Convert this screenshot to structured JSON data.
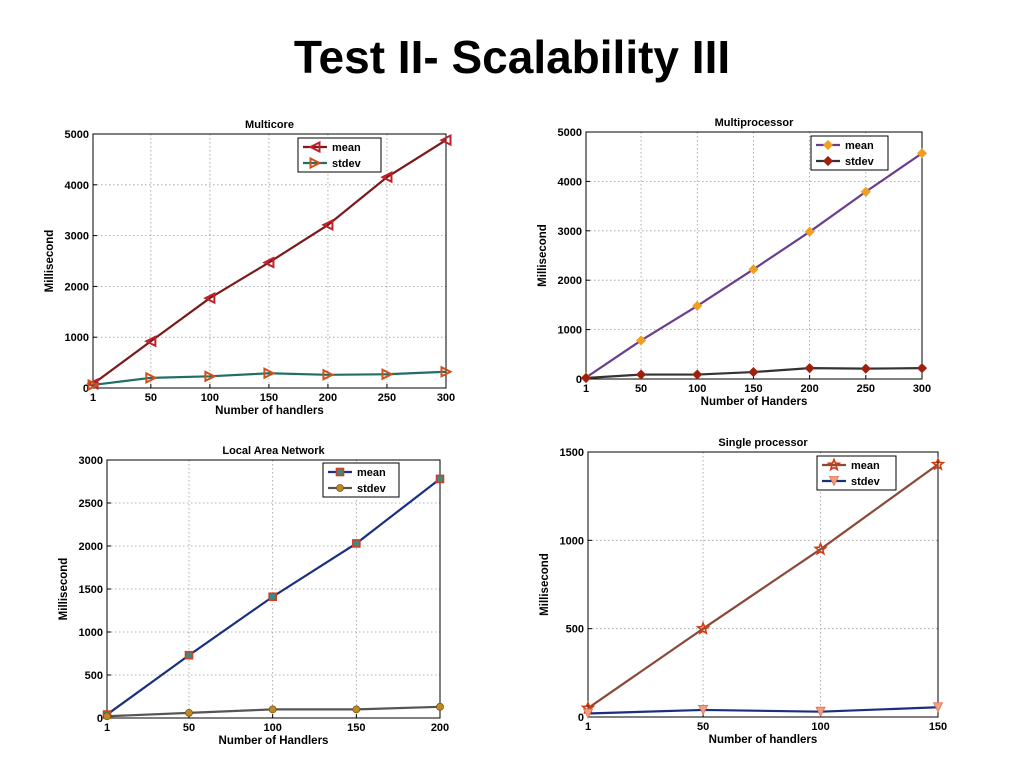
{
  "page": {
    "title": "Test II- Scalability III"
  },
  "chart_data": [
    {
      "type": "line",
      "title": "Multicore",
      "xlabel": "Number of handlers",
      "ylabel": "Millisecond",
      "x": [
        1,
        50,
        100,
        150,
        200,
        250,
        300
      ],
      "xticks": [
        1,
        50,
        100,
        150,
        200,
        250,
        300
      ],
      "xlim": [
        1,
        300
      ],
      "yticks": [
        0,
        1000,
        2000,
        3000,
        4000,
        5000
      ],
      "ylim": [
        0,
        5000
      ],
      "grid": true,
      "legend_position": "top-right",
      "series": [
        {
          "name": "mean",
          "values": [
            80,
            920,
            1770,
            2470,
            3210,
            4150,
            4880
          ],
          "line_color": "#7a1a1a",
          "marker": "triangle-left",
          "marker_color": "#c0202a"
        },
        {
          "name": "stdev",
          "values": [
            60,
            200,
            230,
            290,
            260,
            270,
            320
          ],
          "line_color": "#1f6f66",
          "marker": "triangle-right",
          "marker_color": "#d0501a"
        }
      ]
    },
    {
      "type": "line",
      "title": "Multiprocessor",
      "xlabel": "Number of Handers",
      "ylabel": "Millisecond",
      "x": [
        1,
        50,
        100,
        150,
        200,
        250,
        300
      ],
      "xticks": [
        1,
        50,
        100,
        150,
        200,
        250,
        300
      ],
      "xlim": [
        1,
        300
      ],
      "yticks": [
        0,
        1000,
        2000,
        3000,
        4000,
        5000
      ],
      "ylim": [
        0,
        5000
      ],
      "grid": true,
      "legend_position": "top-right",
      "series": [
        {
          "name": "mean",
          "values": [
            30,
            780,
            1480,
            2220,
            2980,
            3790,
            4570
          ],
          "line_color": "#6a3d8f",
          "marker": "diamond",
          "marker_color": "#f0a020"
        },
        {
          "name": "stdev",
          "values": [
            20,
            90,
            90,
            140,
            220,
            210,
            220
          ],
          "line_color": "#333333",
          "marker": "diamond",
          "marker_color": "#a02010"
        }
      ]
    },
    {
      "type": "line",
      "title": "Local Area Network",
      "xlabel": "Number of Handlers",
      "ylabel": "Millisecond",
      "x": [
        1,
        50,
        100,
        150,
        200
      ],
      "xticks": [
        1,
        50,
        100,
        150,
        200
      ],
      "xlim": [
        1,
        200
      ],
      "yticks": [
        0,
        500,
        1000,
        1500,
        2000,
        2500,
        3000
      ],
      "ylim": [
        0,
        3000
      ],
      "grid": true,
      "legend_position": "top-right",
      "series": [
        {
          "name": "mean",
          "values": [
            40,
            730,
            1410,
            2030,
            2780
          ],
          "line_color": "#1a2f80",
          "marker": "square",
          "marker_color": "#d04020"
        },
        {
          "name": "stdev",
          "values": [
            20,
            60,
            100,
            100,
            130
          ],
          "line_color": "#555555",
          "marker": "circle",
          "marker_color": "#c08a20"
        }
      ]
    },
    {
      "type": "line",
      "title": "Single processor",
      "xlabel": "Number of handlers",
      "ylabel": "Millisecond",
      "x": [
        1,
        50,
        100,
        150
      ],
      "xticks": [
        1,
        50,
        100,
        150
      ],
      "xlim": [
        1,
        150
      ],
      "yticks": [
        0,
        500,
        1000,
        1500
      ],
      "ylim": [
        0,
        1500
      ],
      "grid": true,
      "legend_position": "top-right",
      "series": [
        {
          "name": "mean",
          "values": [
            50,
            500,
            950,
            1430
          ],
          "line_color": "#8a4a3a",
          "marker": "star",
          "marker_color": "#d03a10"
        },
        {
          "name": "stdev",
          "values": [
            20,
            40,
            30,
            55
          ],
          "line_color": "#1a2f80",
          "marker": "triangle-down",
          "marker_color": "#f0a080"
        }
      ]
    }
  ]
}
